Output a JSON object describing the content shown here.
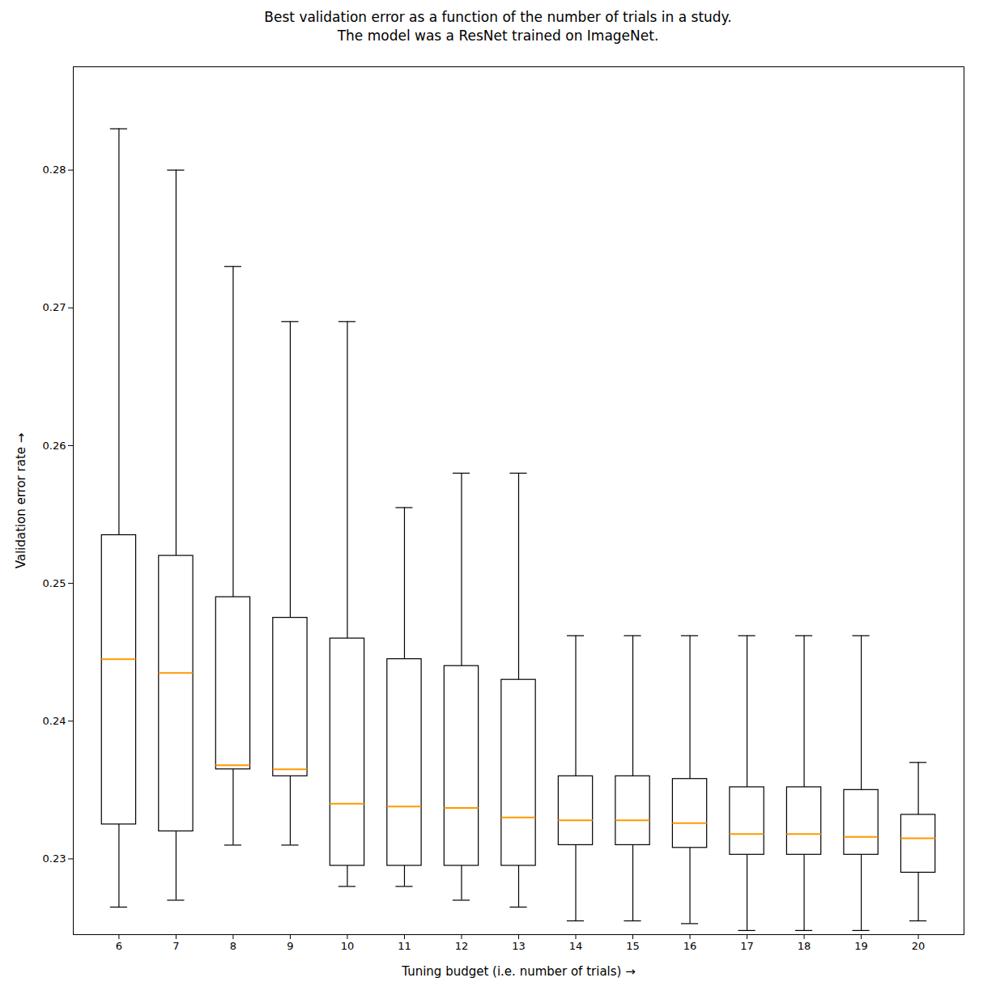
{
  "chart_data": {
    "type": "box",
    "title": "Best validation error as a function of the number of trials in a study.\nThe model was a ResNet trained on ImageNet.",
    "xlabel": "Tuning budget (i.e. number of trials)",
    "ylabel": "Validation error rate",
    "x": [
      6,
      7,
      8,
      9,
      10,
      11,
      12,
      13,
      14,
      15,
      16,
      17,
      18,
      19,
      20
    ],
    "whislo": [
      0.2265,
      0.227,
      0.231,
      0.231,
      0.228,
      0.228,
      0.227,
      0.2265,
      0.2255,
      0.2255,
      0.2253,
      0.2248,
      0.2248,
      0.2248,
      0.2255
    ],
    "q1": [
      0.2325,
      0.232,
      0.2365,
      0.236,
      0.2295,
      0.2295,
      0.2295,
      0.2295,
      0.231,
      0.231,
      0.2308,
      0.2303,
      0.2303,
      0.2303,
      0.229
    ],
    "median": [
      0.2445,
      0.2435,
      0.2368,
      0.2365,
      0.234,
      0.2338,
      0.2337,
      0.233,
      0.2328,
      0.2328,
      0.2326,
      0.2318,
      0.2318,
      0.2316,
      0.2315
    ],
    "q3": [
      0.2535,
      0.252,
      0.249,
      0.2475,
      0.246,
      0.2445,
      0.244,
      0.243,
      0.236,
      0.236,
      0.2358,
      0.2352,
      0.2352,
      0.235,
      0.2332
    ],
    "whishi": [
      0.283,
      0.28,
      0.273,
      0.269,
      0.269,
      0.2555,
      0.258,
      0.258,
      0.2462,
      0.2462,
      0.2462,
      0.2462,
      0.2462,
      0.2462,
      0.237
    ],
    "color": "#ff9800",
    "xlim": [
      5.2,
      20.8
    ],
    "xticks": [
      6,
      7,
      8,
      9,
      10,
      11,
      12,
      13,
      14,
      15,
      16,
      17,
      18,
      19,
      20
    ],
    "ylim": [
      0.2245,
      0.2875
    ],
    "yticks": [
      0.23,
      0.24,
      0.25,
      0.26,
      0.27,
      0.28
    ],
    "grid": false
  }
}
